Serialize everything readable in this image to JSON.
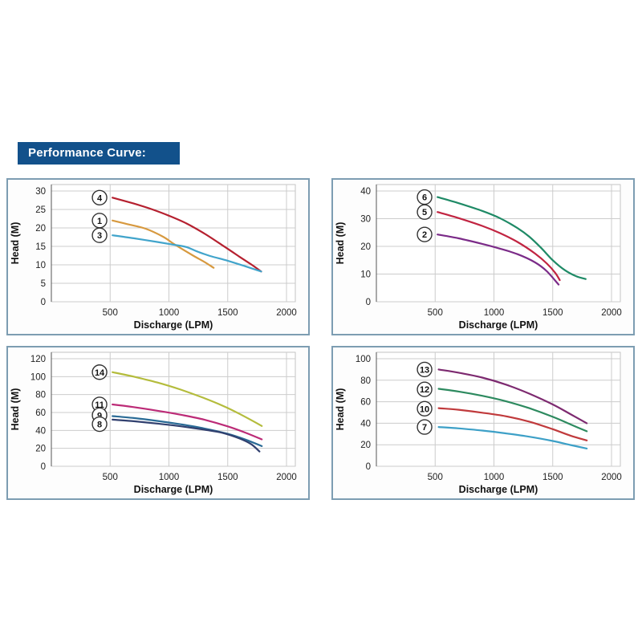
{
  "header": {
    "title": "Performance Curve:",
    "bar_color": "#12518b",
    "text_color": "#ffffff"
  },
  "colors": {
    "panel_border": "#7d9db2",
    "grid": "#cccccc",
    "plot_frame": "#c4c4c4",
    "axis_line": "#555555",
    "tick_text": "#222222",
    "label_text": "#111111",
    "circle_fill": "#ffffff",
    "circle_stroke": "#333333"
  },
  "chart_data": [
    {
      "type": "line",
      "position": "top-left",
      "xlabel": "Discharge (LPM)",
      "ylabel": "Head (M)",
      "xlim": [
        0,
        2075
      ],
      "ylim": [
        0,
        30
      ],
      "x_ticks": [
        500,
        1000,
        1500,
        2000
      ],
      "y_ticks": [
        0,
        5,
        10,
        15,
        20,
        25,
        30
      ],
      "grid": true,
      "legend_position": "none",
      "series": [
        {
          "name": "4",
          "color": "#b5202f",
          "label_pos": {
            "x": 410,
            "y": 28.2
          },
          "points": [
            [
              520,
              28.2
            ],
            [
              700,
              26.6
            ],
            [
              850,
              25.1
            ],
            [
              1000,
              23.3
            ],
            [
              1150,
              21.2
            ],
            [
              1300,
              18.5
            ],
            [
              1450,
              15.4
            ],
            [
              1600,
              12.2
            ],
            [
              1700,
              10.1
            ],
            [
              1785,
              8.2
            ]
          ]
        },
        {
          "name": "1",
          "color": "#d7993f",
          "label_pos": {
            "x": 410,
            "y": 22
          },
          "points": [
            [
              520,
              22.0
            ],
            [
              650,
              21.0
            ],
            [
              800,
              19.8
            ],
            [
              950,
              17.6
            ],
            [
              1050,
              15.5
            ],
            [
              1200,
              12.6
            ],
            [
              1300,
              10.8
            ],
            [
              1380,
              9.2
            ]
          ]
        },
        {
          "name": "3",
          "color": "#41a4cb",
          "label_pos": {
            "x": 410,
            "y": 18
          },
          "points": [
            [
              520,
              18.0
            ],
            [
              700,
              17.2
            ],
            [
              900,
              16.2
            ],
            [
              1050,
              15.4
            ],
            [
              1150,
              14.8
            ],
            [
              1250,
              13.5
            ],
            [
              1350,
              12.4
            ],
            [
              1500,
              11.1
            ],
            [
              1650,
              9.6
            ],
            [
              1785,
              8.2
            ]
          ]
        }
      ]
    },
    {
      "type": "line",
      "position": "top-right",
      "xlabel": "Discharge (LPM)",
      "ylabel": "Head (M)",
      "xlim": [
        0,
        2075
      ],
      "ylim": [
        0,
        40
      ],
      "x_ticks": [
        500,
        1000,
        1500,
        2000
      ],
      "y_ticks": [
        0,
        10,
        20,
        30,
        40
      ],
      "grid": true,
      "legend_position": "none",
      "series": [
        {
          "name": "6",
          "color": "#1f8a66",
          "label_pos": {
            "x": 410,
            "y": 37.8
          },
          "points": [
            [
              520,
              37.8
            ],
            [
              700,
              35.6
            ],
            [
              900,
              32.8
            ],
            [
              1050,
              30.2
            ],
            [
              1200,
              26.6
            ],
            [
              1300,
              23.5
            ],
            [
              1400,
              19.5
            ],
            [
              1500,
              15.0
            ],
            [
              1600,
              11.5
            ],
            [
              1700,
              9.2
            ],
            [
              1780,
              8.2
            ]
          ]
        },
        {
          "name": "5",
          "color": "#c12441",
          "label_pos": {
            "x": 410,
            "y": 32.4
          },
          "points": [
            [
              520,
              32.4
            ],
            [
              700,
              30.2
            ],
            [
              900,
              27.4
            ],
            [
              1050,
              24.8
            ],
            [
              1200,
              21.6
            ],
            [
              1350,
              17.4
            ],
            [
              1450,
              13.8
            ],
            [
              1520,
              10.5
            ],
            [
              1560,
              7.8
            ]
          ]
        },
        {
          "name": "2",
          "color": "#7b2b88",
          "label_pos": {
            "x": 410,
            "y": 24.3
          },
          "points": [
            [
              520,
              24.3
            ],
            [
              700,
              22.9
            ],
            [
              900,
              20.9
            ],
            [
              1050,
              19.2
            ],
            [
              1200,
              17.2
            ],
            [
              1350,
              14.2
            ],
            [
              1450,
              11.0
            ],
            [
              1550,
              6.2
            ]
          ]
        }
      ]
    },
    {
      "type": "line",
      "position": "bottom-left",
      "xlabel": "Discharge (LPM)",
      "ylabel": "Head (M)",
      "xlim": [
        0,
        2075
      ],
      "ylim": [
        0,
        120
      ],
      "x_ticks": [
        500,
        1000,
        1500,
        2000
      ],
      "y_ticks": [
        0,
        20,
        40,
        60,
        80,
        100,
        120
      ],
      "grid": true,
      "legend_position": "none",
      "series": [
        {
          "name": "14",
          "color": "#b4bc3c",
          "label_pos": {
            "x": 410,
            "y": 105
          },
          "points": [
            [
              520,
              105
            ],
            [
              700,
              100
            ],
            [
              900,
              93.5
            ],
            [
              1100,
              85.5
            ],
            [
              1300,
              76
            ],
            [
              1450,
              68
            ],
            [
              1600,
              58.5
            ],
            [
              1790,
              45
            ]
          ]
        },
        {
          "name": "11",
          "color": "#bc2b77",
          "label_pos": {
            "x": 410,
            "y": 69
          },
          "points": [
            [
              520,
              69
            ],
            [
              700,
              66
            ],
            [
              900,
              62
            ],
            [
              1100,
              57.5
            ],
            [
              1300,
              52
            ],
            [
              1500,
              44.5
            ],
            [
              1650,
              37.5
            ],
            [
              1790,
              30
            ]
          ]
        },
        {
          "name": "9",
          "color": "#2a6b96",
          "label_pos": {
            "x": 410,
            "y": 57
          },
          "points": [
            [
              520,
              56
            ],
            [
              700,
              53.8
            ],
            [
              900,
              50.6
            ],
            [
              1100,
              46.8
            ],
            [
              1300,
              42.2
            ],
            [
              1500,
              36.2
            ],
            [
              1650,
              29.8
            ],
            [
              1790,
              22.5
            ]
          ]
        },
        {
          "name": "8",
          "color": "#31406f",
          "label_pos": {
            "x": 410,
            "y": 47
          },
          "points": [
            [
              520,
              52
            ],
            [
              700,
              50.2
            ],
            [
              900,
              47.6
            ],
            [
              1100,
              44.6
            ],
            [
              1300,
              40.8
            ],
            [
              1450,
              37.4
            ],
            [
              1600,
              31
            ],
            [
              1700,
              24.5
            ],
            [
              1770,
              16.5
            ]
          ]
        }
      ]
    },
    {
      "type": "line",
      "position": "bottom-right",
      "xlabel": "Discharge (LPM)",
      "ylabel": "Head (M)",
      "xlim": [
        0,
        2075
      ],
      "ylim": [
        0,
        100
      ],
      "x_ticks": [
        500,
        1000,
        1500,
        2000
      ],
      "y_ticks": [
        0,
        20,
        40,
        60,
        80,
        100
      ],
      "grid": true,
      "legend_position": "none",
      "series": [
        {
          "name": "13",
          "color": "#7d2a70",
          "label_pos": {
            "x": 410,
            "y": 90
          },
          "points": [
            [
              530,
              90
            ],
            [
              700,
              87
            ],
            [
              900,
              82.5
            ],
            [
              1100,
              76
            ],
            [
              1300,
              67.5
            ],
            [
              1500,
              57.5
            ],
            [
              1650,
              48.5
            ],
            [
              1790,
              40
            ]
          ]
        },
        {
          "name": "12",
          "color": "#2d8a5f",
          "label_pos": {
            "x": 410,
            "y": 71.5
          },
          "points": [
            [
              530,
              72
            ],
            [
              700,
              69.5
            ],
            [
              900,
              65.5
            ],
            [
              1100,
              60.5
            ],
            [
              1300,
              54
            ],
            [
              1500,
              46
            ],
            [
              1650,
              39
            ],
            [
              1790,
              32.5
            ]
          ]
        },
        {
          "name": "10",
          "color": "#c03a3c",
          "label_pos": {
            "x": 410,
            "y": 53.5
          },
          "points": [
            [
              530,
              54
            ],
            [
              700,
              52.5
            ],
            [
              900,
              49.8
            ],
            [
              1100,
              46.5
            ],
            [
              1300,
              41.5
            ],
            [
              1500,
              34.5
            ],
            [
              1650,
              28.5
            ],
            [
              1790,
              24
            ]
          ]
        },
        {
          "name": "7",
          "color": "#3da0c7",
          "label_pos": {
            "x": 410,
            "y": 36.5
          },
          "points": [
            [
              530,
              36.5
            ],
            [
              700,
              35.2
            ],
            [
              900,
              33.2
            ],
            [
              1100,
              30.6
            ],
            [
              1300,
              27.5
            ],
            [
              1500,
              23.5
            ],
            [
              1650,
              19.8
            ],
            [
              1790,
              16.5
            ]
          ]
        }
      ]
    }
  ]
}
